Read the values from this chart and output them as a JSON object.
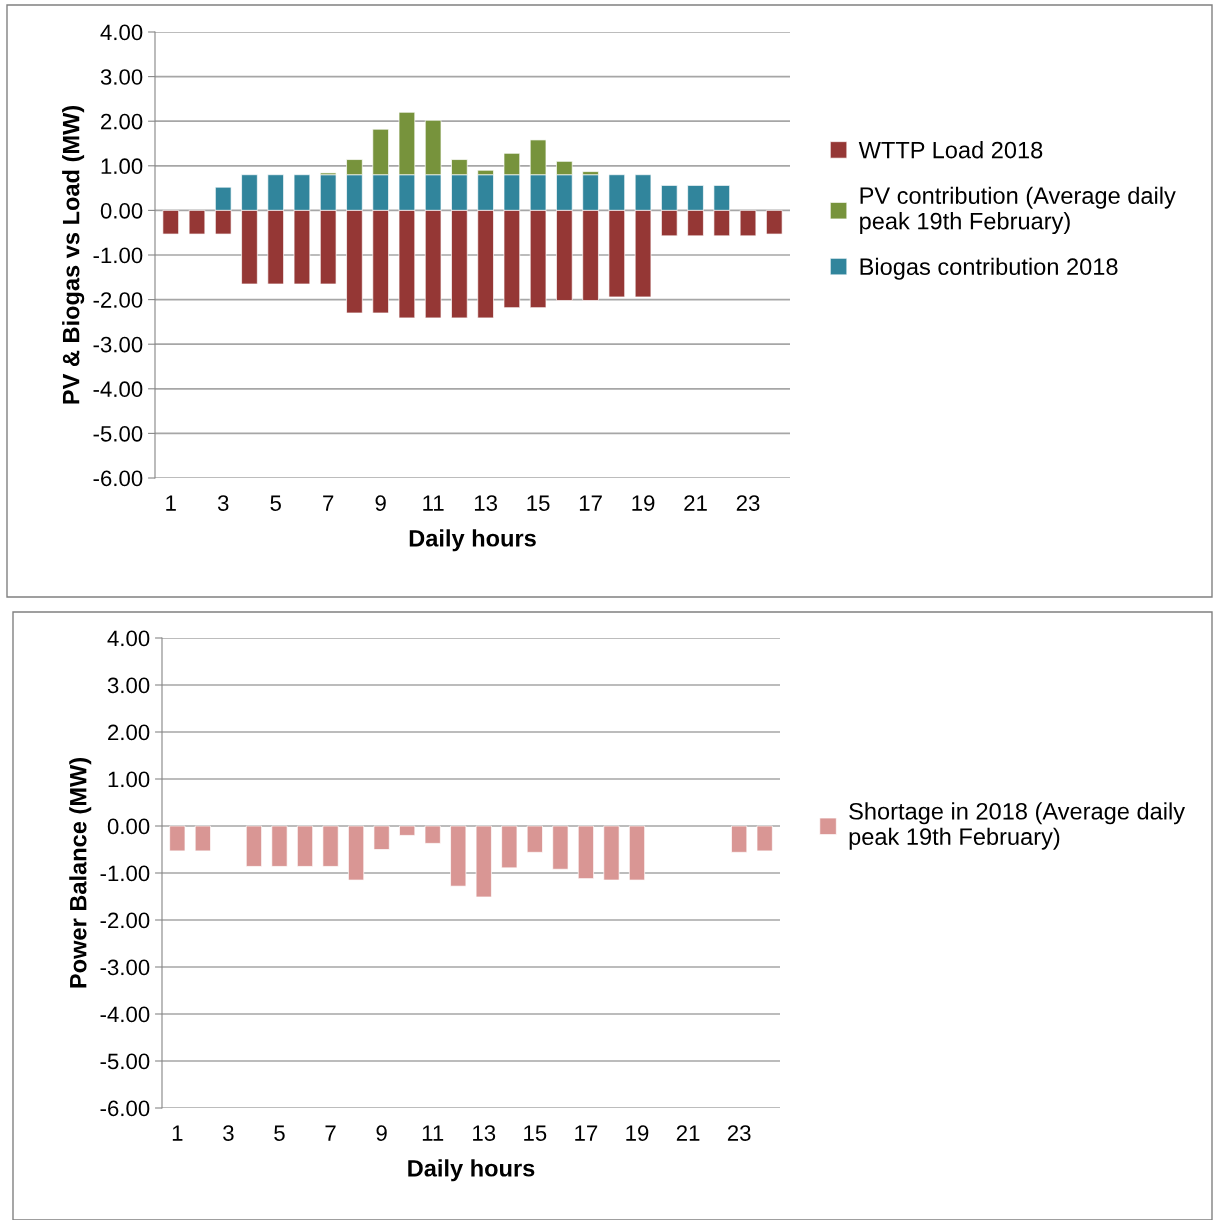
{
  "chart_data": [
    {
      "type": "bar",
      "stacked": true,
      "xlabel": "Daily hours",
      "ylabel": "PV & Biogas vs Load (MW)",
      "categories": [
        "1",
        null,
        "3",
        null,
        "5",
        null,
        "7",
        null,
        "9",
        null,
        "11",
        null,
        "13",
        null,
        "15",
        null,
        "17",
        null,
        "19",
        null,
        "21",
        null,
        "23",
        null
      ],
      "series": [
        {
          "name": "Biogas contribution 2018",
          "color": "#31859c",
          "values": [
            null,
            null,
            0.52,
            0.8,
            0.8,
            0.8,
            0.8,
            0.8,
            0.8,
            0.8,
            0.8,
            0.8,
            0.8,
            0.8,
            0.8,
            0.8,
            0.8,
            0.8,
            0.8,
            0.56,
            0.56,
            0.56,
            null,
            null
          ]
        },
        {
          "name": "PV contribution (Average daily\npeak 19th February)",
          "color": "#77933c",
          "values": [
            null,
            null,
            null,
            null,
            null,
            null,
            0.04,
            0.34,
            1.02,
            1.4,
            1.22,
            0.34,
            0.1,
            0.48,
            0.78,
            0.3,
            0.07,
            null,
            null,
            null,
            null,
            null,
            null,
            null
          ]
        },
        {
          "name": "WTTP Load 2018",
          "color": "#953735",
          "values": [
            -0.53,
            -0.53,
            -0.53,
            -1.65,
            -1.65,
            -1.65,
            -1.65,
            -2.3,
            -2.3,
            -2.41,
            -2.41,
            -2.41,
            -2.41,
            -2.18,
            -2.18,
            -2.02,
            -2.02,
            -1.94,
            -1.94,
            -0.57,
            -0.57,
            -0.57,
            -0.57,
            -0.53
          ]
        }
      ],
      "ylim": [
        -6,
        4
      ],
      "yticks": [
        {
          "value": 4,
          "label": "4.00"
        },
        {
          "value": 3,
          "label": "3.00"
        },
        {
          "value": 2,
          "label": "2.00"
        },
        {
          "value": 1,
          "label": "1.00"
        },
        {
          "value": 0,
          "label": "0.00"
        },
        {
          "value": -1,
          "label": "-1.00"
        },
        {
          "value": -2,
          "label": "-2.00"
        },
        {
          "value": -3,
          "label": "-3.00"
        },
        {
          "value": -4,
          "label": "-4.00"
        },
        {
          "value": -5,
          "label": "-5.00"
        },
        {
          "value": -6,
          "label": "-6.00"
        }
      ],
      "grid": "y",
      "legend": "right"
    },
    {
      "type": "bar",
      "xlabel": "Daily hours",
      "ylabel": "Power Balance (MW)",
      "categories": [
        "1",
        null,
        "3",
        null,
        "5",
        null,
        "7",
        null,
        "9",
        null,
        "11",
        null,
        "13",
        null,
        "15",
        null,
        "17",
        null,
        "19",
        null,
        "21",
        null,
        "23",
        null
      ],
      "series": [
        {
          "name": "Shortage in 2018 (Average daily\npeak 19th February)",
          "color": "#d99694",
          "values": [
            -0.53,
            -0.53,
            null,
            -0.86,
            -0.86,
            -0.86,
            -0.86,
            -1.15,
            -0.5,
            -0.2,
            -0.37,
            -1.28,
            -1.51,
            -0.89,
            -0.56,
            -0.92,
            -1.12,
            -1.15,
            -1.15,
            null,
            null,
            null,
            -0.56,
            -0.53
          ]
        }
      ],
      "ylim": [
        -6,
        4
      ],
      "yticks": [
        {
          "value": 4,
          "label": "4.00"
        },
        {
          "value": 3,
          "label": "3.00"
        },
        {
          "value": 2,
          "label": "2.00"
        },
        {
          "value": 1,
          "label": "1.00"
        },
        {
          "value": 0,
          "label": "0.00"
        },
        {
          "value": -1,
          "label": "-1.00"
        },
        {
          "value": -2,
          "label": "-2.00"
        },
        {
          "value": -3,
          "label": "-3.00"
        },
        {
          "value": -4,
          "label": "-4.00"
        },
        {
          "value": -5,
          "label": "-5.00"
        },
        {
          "value": -6,
          "label": "-6.00"
        }
      ],
      "grid": "y",
      "legend": "right"
    }
  ]
}
